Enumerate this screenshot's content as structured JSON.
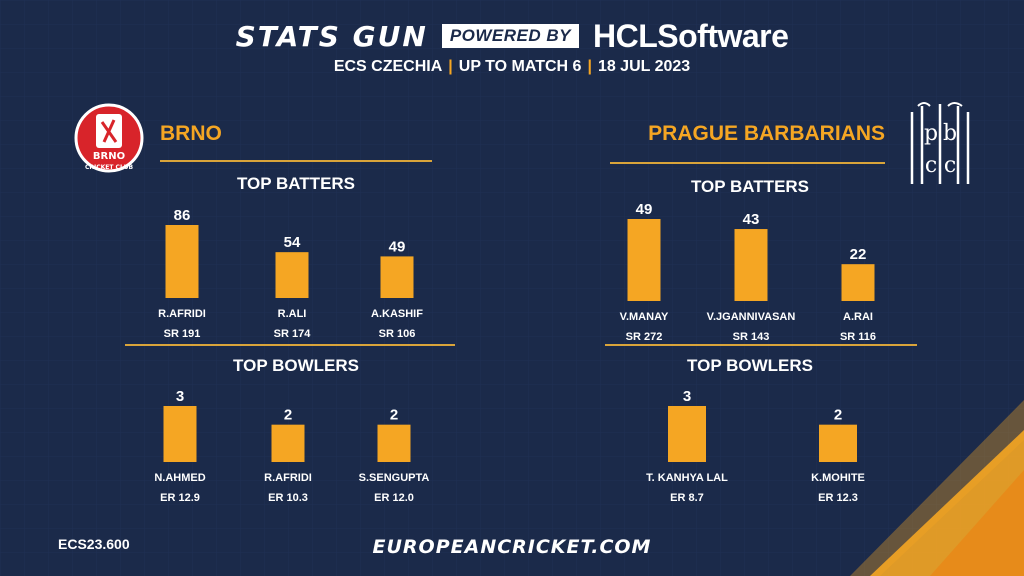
{
  "header": {
    "brand": "STATS GUN",
    "powered_by": "POWERED BY",
    "sponsor": "HCLSoftware",
    "subtitle_parts": [
      "ECS CZECHIA",
      "UP TO MATCH 6",
      "18 JUL 2023"
    ]
  },
  "teams": {
    "left": {
      "name": "BRNO",
      "logo_text": [
        "BRNO",
        "CRICKET CLUB"
      ],
      "batters_title": "TOP BATTERS",
      "bowlers_title": "TOP BOWLERS"
    },
    "right": {
      "name": "PRAGUE BARBARIANS",
      "logo_text": [
        "p",
        "b",
        "c",
        "c"
      ],
      "batters_title": "TOP BATTERS",
      "bowlers_title": "TOP BOWLERS"
    }
  },
  "footer": {
    "code": "ECS23.600",
    "site": "EUROPEANCRICKET.COM"
  },
  "colors": {
    "background": "#1b2a4a",
    "accent": "#f5a623",
    "line": "#d9a43a"
  },
  "chart_data": [
    {
      "type": "bar",
      "id": "brno-batters",
      "title": "TOP BATTERS",
      "categories": [
        "R.AFRIDI",
        "R.ALI",
        "A.KASHIF"
      ],
      "values": [
        86,
        54,
        49
      ],
      "sublabels": [
        "SR 191",
        "SR 174",
        "SR 106"
      ],
      "ylim": [
        0,
        86
      ]
    },
    {
      "type": "bar",
      "id": "brno-bowlers",
      "title": "TOP BOWLERS",
      "categories": [
        "N.AHMED",
        "R.AFRIDI",
        "S.SENGUPTA"
      ],
      "values": [
        3,
        2,
        2
      ],
      "sublabels": [
        "ER 12.9",
        "ER 10.3",
        "ER 12.0"
      ],
      "ylim": [
        0,
        3
      ]
    },
    {
      "type": "bar",
      "id": "pb-batters",
      "title": "TOP BATTERS",
      "categories": [
        "V.MANAY",
        "V.JGANNIVASAN",
        "A.RAI"
      ],
      "values": [
        49,
        43,
        22
      ],
      "sublabels": [
        "SR 272",
        "SR 143",
        "SR 116"
      ],
      "ylim": [
        0,
        49
      ]
    },
    {
      "type": "bar",
      "id": "pb-bowlers",
      "title": "TOP BOWLERS",
      "categories": [
        "T. KANHYA LAL",
        "K.MOHITE"
      ],
      "values": [
        3,
        2
      ],
      "sublabels": [
        "ER 8.7",
        "ER 12.3"
      ],
      "ylim": [
        0,
        3
      ]
    }
  ]
}
